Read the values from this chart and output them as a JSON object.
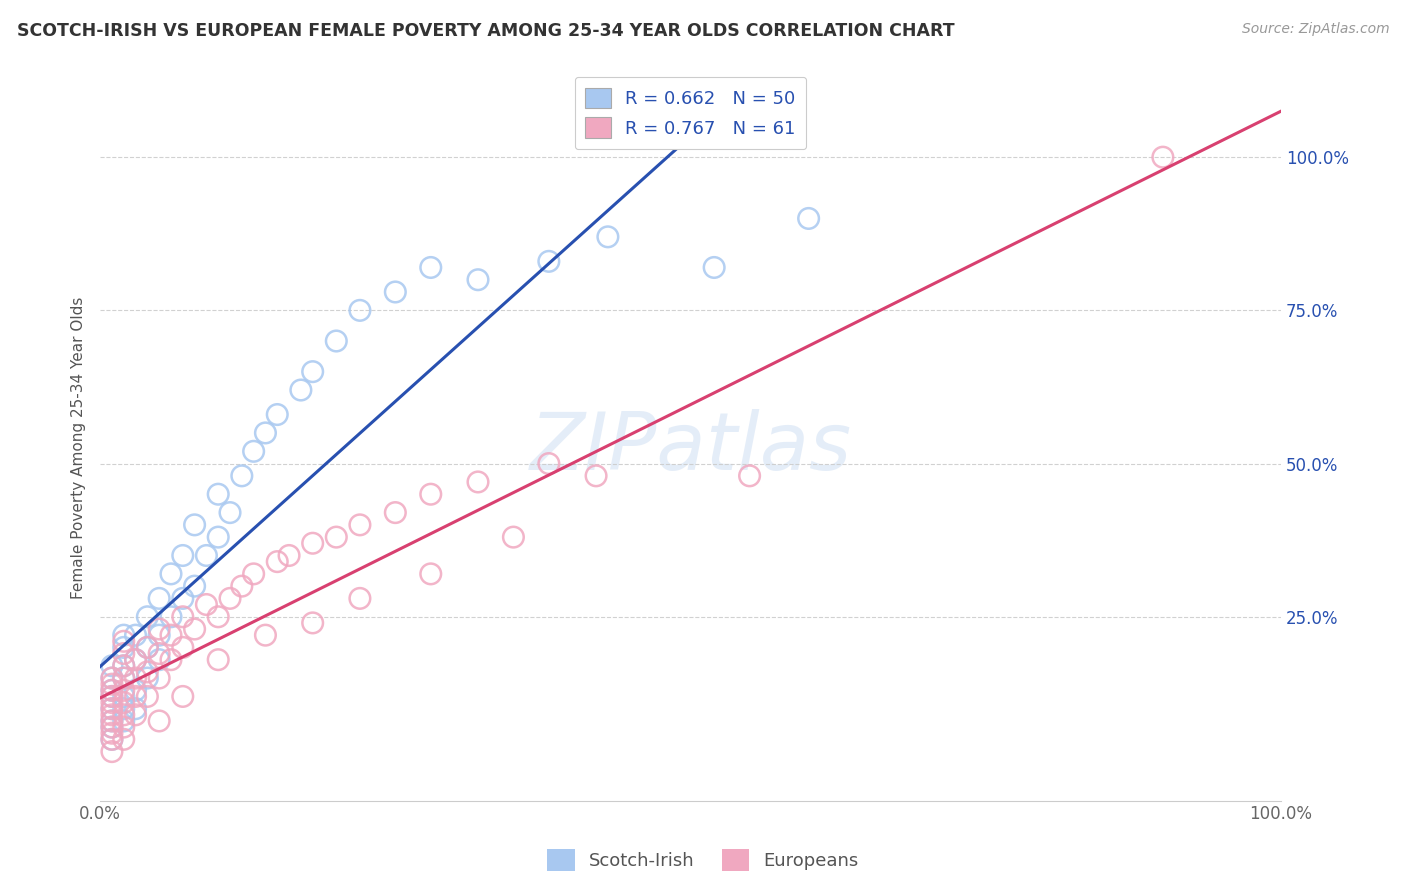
{
  "title": "SCOTCH-IRISH VS EUROPEAN FEMALE POVERTY AMONG 25-34 YEAR OLDS CORRELATION CHART",
  "source": "Source: ZipAtlas.com",
  "ylabel": "Female Poverty Among 25-34 Year Olds",
  "xlim": [
    0,
    1.0
  ],
  "ylim": [
    -0.05,
    1.1
  ],
  "xtick_labels": [
    "0.0%",
    "100.0%"
  ],
  "ytick_labels": [
    "25.0%",
    "50.0%",
    "75.0%",
    "100.0%"
  ],
  "ytick_positions": [
    0.25,
    0.5,
    0.75,
    1.0
  ],
  "legend_label1": "R = 0.662   N = 50",
  "legend_label2": "R = 0.767   N = 61",
  "color_blue": "#a8c8f0",
  "color_pink": "#f0a8c0",
  "line_color_blue": "#2850b0",
  "line_color_pink": "#d84070",
  "watermark": "ZIPatlas",
  "legend_bottom_label1": "Scotch-Irish",
  "legend_bottom_label2": "Europeans",
  "scotch_irish_x": [
    0.01,
    0.01,
    0.01,
    0.01,
    0.01,
    0.01,
    0.01,
    0.01,
    0.02,
    0.02,
    0.02,
    0.02,
    0.02,
    0.02,
    0.02,
    0.03,
    0.03,
    0.03,
    0.03,
    0.04,
    0.04,
    0.04,
    0.05,
    0.05,
    0.05,
    0.06,
    0.06,
    0.07,
    0.07,
    0.08,
    0.08,
    0.09,
    0.1,
    0.1,
    0.11,
    0.12,
    0.13,
    0.14,
    0.15,
    0.17,
    0.18,
    0.2,
    0.22,
    0.25,
    0.28,
    0.32,
    0.38,
    0.43,
    0.52,
    0.6
  ],
  "scotch_irish_y": [
    0.05,
    0.07,
    0.08,
    0.1,
    0.12,
    0.13,
    0.15,
    0.17,
    0.08,
    0.1,
    0.12,
    0.15,
    0.17,
    0.2,
    0.22,
    0.1,
    0.13,
    0.18,
    0.22,
    0.15,
    0.2,
    0.25,
    0.18,
    0.22,
    0.28,
    0.25,
    0.32,
    0.28,
    0.35,
    0.3,
    0.4,
    0.35,
    0.38,
    0.45,
    0.42,
    0.48,
    0.52,
    0.55,
    0.58,
    0.62,
    0.65,
    0.7,
    0.75,
    0.78,
    0.82,
    0.8,
    0.83,
    0.87,
    0.82,
    0.9
  ],
  "europeans_x": [
    0.01,
    0.01,
    0.01,
    0.01,
    0.01,
    0.01,
    0.01,
    0.01,
    0.01,
    0.01,
    0.01,
    0.01,
    0.02,
    0.02,
    0.02,
    0.02,
    0.02,
    0.02,
    0.02,
    0.02,
    0.02,
    0.03,
    0.03,
    0.03,
    0.03,
    0.04,
    0.04,
    0.04,
    0.05,
    0.05,
    0.05,
    0.06,
    0.06,
    0.07,
    0.07,
    0.08,
    0.09,
    0.1,
    0.11,
    0.12,
    0.13,
    0.15,
    0.16,
    0.18,
    0.2,
    0.22,
    0.25,
    0.28,
    0.32,
    0.38,
    0.05,
    0.07,
    0.1,
    0.14,
    0.18,
    0.22,
    0.28,
    0.35,
    0.42,
    0.55,
    0.9
  ],
  "europeans_y": [
    0.03,
    0.05,
    0.06,
    0.07,
    0.08,
    0.09,
    0.1,
    0.11,
    0.12,
    0.13,
    0.14,
    0.15,
    0.05,
    0.07,
    0.09,
    0.11,
    0.13,
    0.15,
    0.17,
    0.19,
    0.21,
    0.09,
    0.12,
    0.15,
    0.18,
    0.12,
    0.16,
    0.2,
    0.15,
    0.19,
    0.23,
    0.18,
    0.22,
    0.2,
    0.25,
    0.23,
    0.27,
    0.25,
    0.28,
    0.3,
    0.32,
    0.34,
    0.35,
    0.37,
    0.38,
    0.4,
    0.42,
    0.45,
    0.47,
    0.5,
    0.08,
    0.12,
    0.18,
    0.22,
    0.24,
    0.28,
    0.32,
    0.38,
    0.48,
    0.48,
    1.0
  ]
}
